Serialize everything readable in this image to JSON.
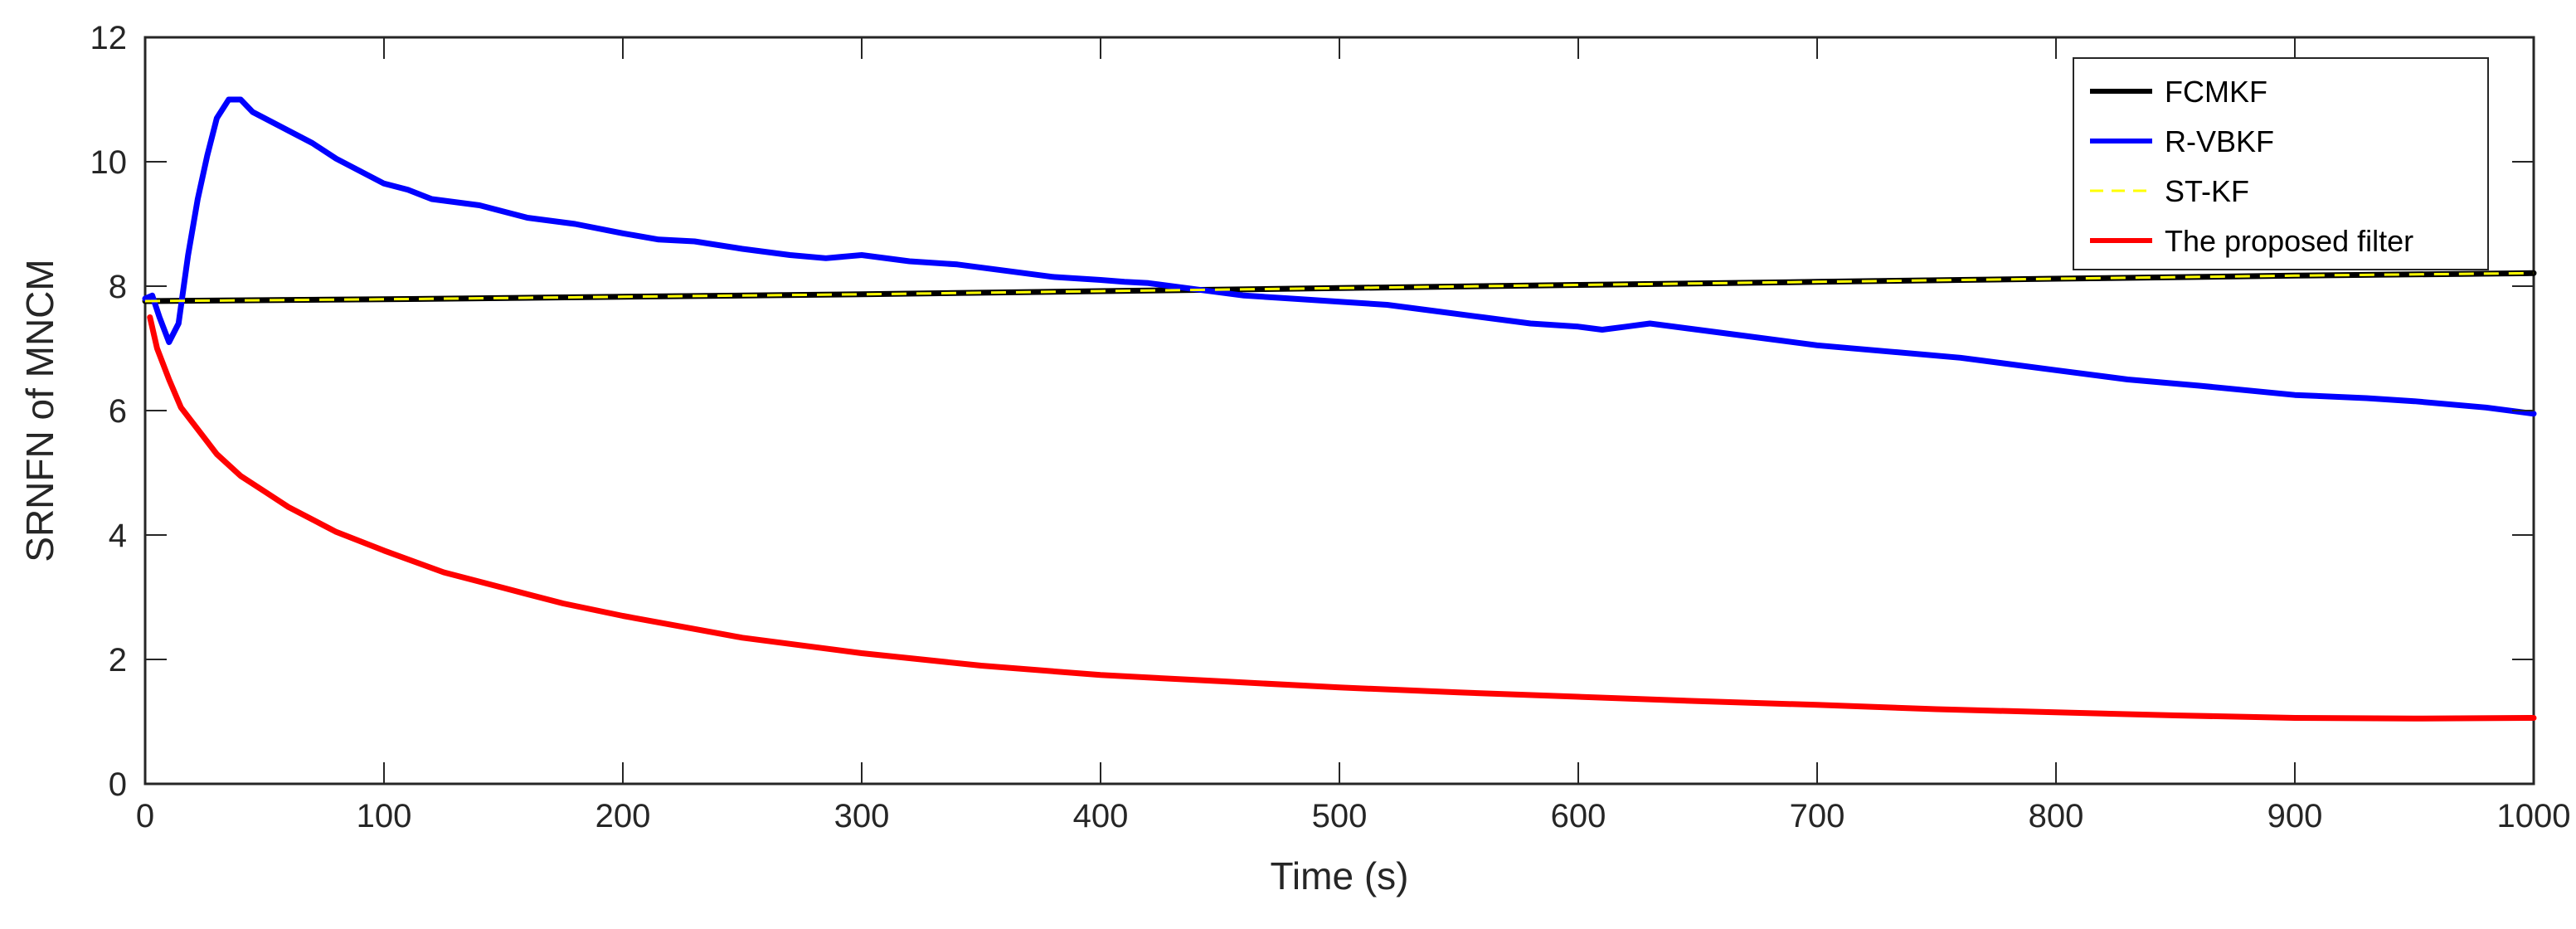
{
  "chart_data": {
    "type": "line",
    "title": "",
    "xlabel": "Time (s)",
    "ylabel": "SRNFN of MNCM",
    "xlim": [
      0,
      1000
    ],
    "ylim": [
      0,
      12
    ],
    "xticks": [
      0,
      100,
      200,
      300,
      400,
      500,
      600,
      700,
      800,
      900,
      1000
    ],
    "yticks": [
      0,
      2,
      4,
      6,
      8,
      10,
      12
    ],
    "grid": false,
    "legend_position": "top-right",
    "series": [
      {
        "name": "FCMKF",
        "color": "#000000",
        "style": "solid",
        "x": [
          0,
          100,
          200,
          300,
          400,
          500,
          600,
          700,
          800,
          900,
          1000
        ],
        "y": [
          7.76,
          7.79,
          7.83,
          7.87,
          7.92,
          7.97,
          8.02,
          8.07,
          8.12,
          8.17,
          8.21
        ]
      },
      {
        "name": "R-VBKF",
        "color": "#0000ff",
        "style": "solid",
        "x": [
          0,
          3,
          6,
          10,
          14,
          18,
          22,
          26,
          30,
          35,
          40,
          45,
          50,
          60,
          70,
          80,
          90,
          100,
          110,
          120,
          140,
          160,
          180,
          200,
          215,
          230,
          250,
          270,
          285,
          300,
          320,
          340,
          360,
          380,
          400,
          410,
          420,
          440,
          460,
          480,
          500,
          520,
          540,
          560,
          580,
          600,
          610,
          620,
          630,
          650,
          670,
          700,
          730,
          760,
          800,
          830,
          860,
          900,
          930,
          950,
          980,
          1000
        ],
        "y": [
          7.8,
          7.85,
          7.5,
          7.1,
          7.4,
          8.5,
          9.4,
          10.1,
          10.7,
          11.0,
          11.0,
          10.8,
          10.7,
          10.5,
          10.3,
          10.05,
          9.85,
          9.65,
          9.55,
          9.4,
          9.3,
          9.1,
          9.0,
          8.85,
          8.75,
          8.72,
          8.6,
          8.5,
          8.45,
          8.5,
          8.4,
          8.35,
          8.25,
          8.15,
          8.1,
          8.07,
          8.05,
          7.95,
          7.85,
          7.8,
          7.75,
          7.7,
          7.6,
          7.5,
          7.4,
          7.35,
          7.3,
          7.35,
          7.4,
          7.3,
          7.2,
          7.05,
          6.95,
          6.85,
          6.65,
          6.5,
          6.4,
          6.25,
          6.2,
          6.15,
          6.05,
          5.95
        ]
      },
      {
        "name": "ST-KF",
        "color": "#ffff00",
        "style": "dashed",
        "x": [
          0,
          100,
          200,
          300,
          400,
          500,
          600,
          700,
          800,
          900,
          1000
        ],
        "y": [
          7.76,
          7.79,
          7.83,
          7.87,
          7.92,
          7.97,
          8.02,
          8.07,
          8.12,
          8.17,
          8.21
        ]
      },
      {
        "name": "The proposed filter",
        "color": "#ff0000",
        "style": "solid",
        "x": [
          2,
          5,
          10,
          15,
          20,
          30,
          40,
          50,
          60,
          80,
          100,
          125,
          150,
          175,
          200,
          250,
          300,
          350,
          400,
          450,
          500,
          550,
          600,
          650,
          700,
          750,
          800,
          850,
          900,
          950,
          1000
        ],
        "y": [
          7.5,
          7.0,
          6.5,
          6.05,
          5.8,
          5.3,
          4.95,
          4.7,
          4.45,
          4.05,
          3.75,
          3.4,
          3.15,
          2.9,
          2.7,
          2.35,
          2.1,
          1.9,
          1.75,
          1.65,
          1.55,
          1.47,
          1.4,
          1.33,
          1.27,
          1.2,
          1.15,
          1.1,
          1.06,
          1.05,
          1.06
        ]
      }
    ]
  }
}
